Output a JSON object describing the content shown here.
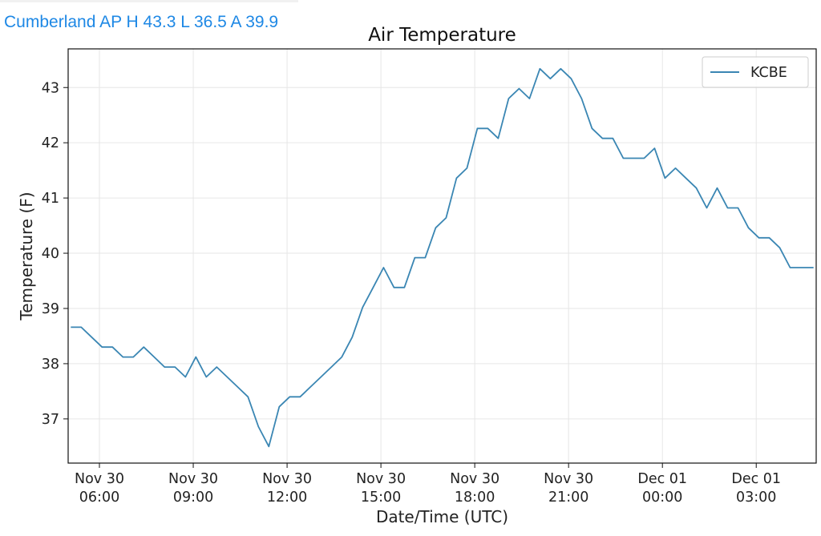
{
  "header": {
    "station_summary": "Cumberland AP H 43.3 L 36.5 A 39.9"
  },
  "colors": {
    "header_text": "#1e88e5",
    "series_line": "#3a86b3",
    "grid": "#e6e6e6"
  },
  "chart_data": {
    "type": "line",
    "title": "Air Temperature",
    "xlabel": "Date/Time (UTC)",
    "ylabel": "Temperature (F)",
    "xlim": [
      "2016-11-30T05:00",
      "2016-12-01T04:55"
    ],
    "ylim": [
      36.2,
      43.7
    ],
    "grid": true,
    "legend_placement": "top-right",
    "x_ticks": [
      {
        "x": "2016-11-30T06:00",
        "line1": "Nov 30",
        "line2": "06:00"
      },
      {
        "x": "2016-11-30T09:00",
        "line1": "Nov 30",
        "line2": "09:00"
      },
      {
        "x": "2016-11-30T12:00",
        "line1": "Nov 30",
        "line2": "12:00"
      },
      {
        "x": "2016-11-30T15:00",
        "line1": "Nov 30",
        "line2": "15:00"
      },
      {
        "x": "2016-11-30T18:00",
        "line1": "Nov 30",
        "line2": "18:00"
      },
      {
        "x": "2016-11-30T21:00",
        "line1": "Nov 30",
        "line2": "21:00"
      },
      {
        "x": "2016-12-01T00:00",
        "line1": "Dec 01",
        "line2": "00:00"
      },
      {
        "x": "2016-12-01T03:00",
        "line1": "Dec 01",
        "line2": "03:00"
      }
    ],
    "y_ticks": [
      37,
      38,
      39,
      40,
      41,
      42,
      43
    ],
    "series": [
      {
        "name": "KCBE",
        "color": "#3a86b3",
        "x": [
          "2016-11-30T05:05",
          "2016-11-30T05:25",
          "2016-11-30T05:45",
          "2016-11-30T06:05",
          "2016-11-30T06:25",
          "2016-11-30T06:45",
          "2016-11-30T07:05",
          "2016-11-30T07:25",
          "2016-11-30T07:45",
          "2016-11-30T08:05",
          "2016-11-30T08:25",
          "2016-11-30T08:45",
          "2016-11-30T09:05",
          "2016-11-30T09:25",
          "2016-11-30T09:45",
          "2016-11-30T10:05",
          "2016-11-30T10:25",
          "2016-11-30T10:45",
          "2016-11-30T11:05",
          "2016-11-30T11:25",
          "2016-11-30T11:45",
          "2016-11-30T12:05",
          "2016-11-30T12:25",
          "2016-11-30T12:45",
          "2016-11-30T13:05",
          "2016-11-30T13:25",
          "2016-11-30T13:45",
          "2016-11-30T14:05",
          "2016-11-30T14:25",
          "2016-11-30T14:45",
          "2016-11-30T15:05",
          "2016-11-30T15:25",
          "2016-11-30T15:45",
          "2016-11-30T16:05",
          "2016-11-30T16:25",
          "2016-11-30T16:45",
          "2016-11-30T17:05",
          "2016-11-30T17:25",
          "2016-11-30T17:45",
          "2016-11-30T18:05",
          "2016-11-30T18:25",
          "2016-11-30T18:45",
          "2016-11-30T19:05",
          "2016-11-30T19:25",
          "2016-11-30T19:45",
          "2016-11-30T20:05",
          "2016-11-30T20:25",
          "2016-11-30T20:45",
          "2016-11-30T21:05",
          "2016-11-30T21:25",
          "2016-11-30T21:45",
          "2016-11-30T22:05",
          "2016-11-30T22:25",
          "2016-11-30T22:45",
          "2016-11-30T23:05",
          "2016-11-30T23:25",
          "2016-11-30T23:45",
          "2016-12-01T00:05",
          "2016-12-01T00:25",
          "2016-12-01T00:45",
          "2016-12-01T01:05",
          "2016-12-01T01:25",
          "2016-12-01T01:45",
          "2016-12-01T02:05",
          "2016-12-01T02:25",
          "2016-12-01T02:45",
          "2016-12-01T03:05",
          "2016-12-01T03:25",
          "2016-12-01T03:45",
          "2016-12-01T04:05",
          "2016-12-01T04:25",
          "2016-12-01T04:50"
        ],
        "y": [
          38.66,
          38.66,
          38.48,
          38.3,
          38.3,
          38.12,
          38.12,
          38.3,
          38.12,
          37.94,
          37.94,
          37.76,
          38.12,
          37.76,
          37.94,
          37.76,
          37.58,
          37.4,
          36.86,
          36.5,
          37.22,
          37.4,
          37.4,
          37.58,
          37.76,
          37.94,
          38.12,
          38.48,
          39.02,
          39.38,
          39.74,
          39.38,
          39.38,
          39.92,
          39.92,
          40.46,
          40.64,
          41.36,
          41.54,
          42.26,
          42.26,
          42.08,
          42.8,
          42.98,
          42.8,
          43.34,
          43.16,
          43.34,
          43.16,
          42.8,
          42.26,
          42.08,
          42.08,
          41.72,
          41.72,
          41.72,
          41.9,
          41.36,
          41.54,
          41.36,
          41.18,
          40.82,
          41.18,
          40.82,
          40.82,
          40.46,
          40.28,
          40.28,
          40.1,
          39.74,
          39.74,
          39.74
        ]
      }
    ]
  }
}
